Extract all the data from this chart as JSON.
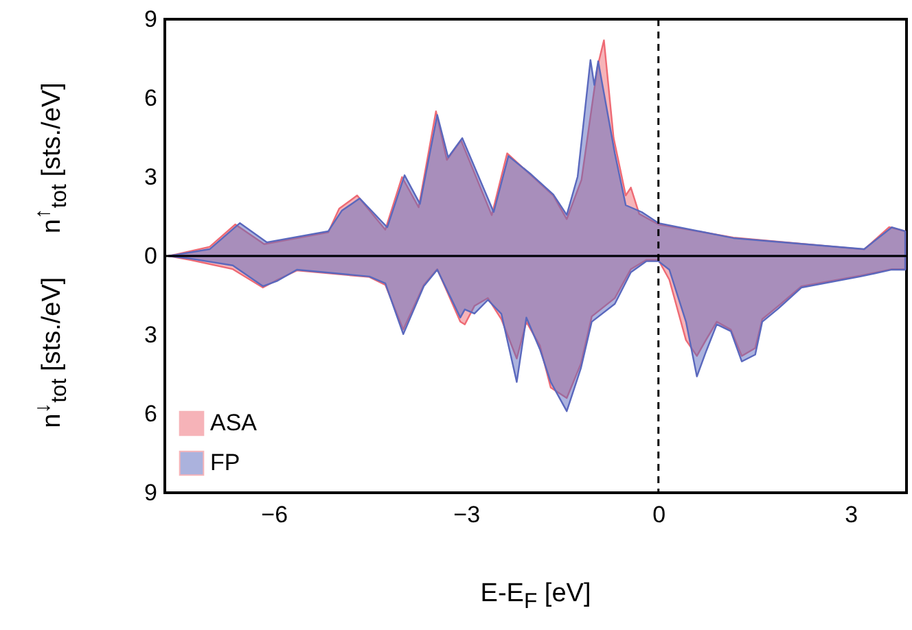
{
  "chart_data": {
    "type": "area",
    "xlabel": "E-E$_{F}$ [eV]",
    "ylabel": "n$^{↓}$$_{tot}$ [sts./eV]      n$^{↑}$$_{tot}$ [sts./eV]",
    "xlim": [
      -7.7,
      3.87
    ],
    "xticks": [
      -6,
      -3,
      0,
      3
    ],
    "ylim": [
      -9,
      9
    ],
    "yticks": [
      {
        "value": -9,
        "label": "9"
      },
      {
        "value": -6,
        "label": "6"
      },
      {
        "value": -3,
        "label": "3"
      },
      0,
      3,
      6,
      9
    ],
    "legend": "bottom left",
    "grid": false,
    "ref_lines": [
      {
        "axis": "y",
        "value": 0,
        "color": "#000000",
        "line_style": "solid"
      },
      {
        "axis": "x",
        "value": 0,
        "color": "#000000",
        "line_style": "dashed"
      }
    ],
    "series": [
      {
        "name": "ASA",
        "color": "#ee6a74",
        "x": [
          -7.64,
          -7.0,
          -6.6,
          -6.15,
          -5.15,
          -4.98,
          -4.7,
          -4.26,
          -4.0,
          -3.74,
          -3.47,
          -3.3,
          -3.08,
          -2.6,
          -2.36,
          -2.0,
          -1.64,
          -1.43,
          -1.2,
          -0.95,
          -0.85,
          -0.7,
          -0.51,
          -0.43,
          -0.3,
          0,
          1.17,
          3.21,
          3.6,
          3.85
        ],
        "values": [
          0,
          0.35,
          1.2,
          0.45,
          0.9,
          1.8,
          2.3,
          1.0,
          3.0,
          1.85,
          5.5,
          3.65,
          4.4,
          1.55,
          3.9,
          3.1,
          2.3,
          1.4,
          2.9,
          7.2,
          8.2,
          4.5,
          2.3,
          2.6,
          1.6,
          1.2,
          0.7,
          0.25,
          1.1,
          0.94
        ]
      },
      {
        "color": "#ee6a74",
        "x": [
          -7.64,
          -7.3,
          -6.64,
          -6.17,
          -5.94,
          -5.64,
          -4.51,
          -4.26,
          -3.98,
          -3.66,
          -3.45,
          -3.09,
          -3.02,
          -2.87,
          -2.66,
          -2.45,
          -2.21,
          -2.06,
          -1.85,
          -1.68,
          -1.43,
          -1.21,
          -1.04,
          -0.68,
          -0.43,
          -0.19,
          0,
          0.17,
          0.43,
          0.6,
          0.74,
          0.91,
          1.13,
          1.3,
          1.51,
          1.62,
          1.87,
          2.23,
          3.15,
          3.64,
          3.85
        ],
        "values": [
          0,
          -0.15,
          -0.5,
          -1.2,
          -0.9,
          -0.55,
          -0.8,
          -1.1,
          -2.8,
          -1.1,
          -0.5,
          -2.5,
          -2.6,
          -1.9,
          -1.6,
          -2.4,
          -3.9,
          -2.5,
          -3.4,
          -5.0,
          -5.4,
          -4.1,
          -2.3,
          -1.6,
          -0.5,
          -0.15,
          -0.15,
          -0.9,
          -3.2,
          -3.8,
          -3.2,
          -2.5,
          -2.8,
          -3.8,
          -3.5,
          -2.4,
          -1.9,
          -1.15,
          -0.75,
          -0.5,
          -0.5
        ]
      },
      {
        "name": "FP",
        "color": "#5a68bd",
        "x": [
          -7.64,
          -7.0,
          -6.53,
          -6.11,
          -5.15,
          -4.94,
          -4.66,
          -4.23,
          -3.96,
          -3.72,
          -3.45,
          -3.28,
          -3.06,
          -2.57,
          -2.34,
          -2.0,
          -1.64,
          -1.43,
          -1.26,
          -1.06,
          -1.0,
          -0.94,
          -0.68,
          -0.51,
          -0.26,
          0,
          1.17,
          3.21,
          3.64,
          3.85
        ],
        "values": [
          0,
          0.26,
          1.25,
          0.52,
          0.94,
          1.72,
          2.19,
          1.09,
          3.07,
          1.98,
          5.36,
          3.75,
          4.48,
          1.67,
          3.8,
          3.13,
          2.34,
          1.56,
          3.02,
          7.45,
          6.5,
          7.4,
          3.9,
          1.93,
          1.67,
          1.25,
          0.68,
          0.26,
          1.09,
          0.94
        ]
      },
      {
        "color": "#5a68bd",
        "x": [
          -7.64,
          -7.3,
          -6.64,
          -6.17,
          -5.94,
          -5.64,
          -4.51,
          -4.26,
          -3.98,
          -3.66,
          -3.45,
          -3.09,
          -3.02,
          -2.87,
          -2.66,
          -2.45,
          -2.21,
          -2.06,
          -1.85,
          -1.68,
          -1.43,
          -1.21,
          -1.04,
          -0.68,
          -0.43,
          -0.19,
          0,
          0.17,
          0.43,
          0.6,
          0.74,
          0.91,
          1.13,
          1.3,
          1.51,
          1.62,
          1.87,
          2.23,
          3.15,
          3.64,
          3.85
        ],
        "values": [
          0,
          -0.1,
          -0.36,
          -1.15,
          -0.94,
          -0.52,
          -0.78,
          -1.04,
          -2.97,
          -1.15,
          -0.52,
          -2.34,
          -2.03,
          -2.19,
          -1.67,
          -2.2,
          -4.79,
          -2.34,
          -3.54,
          -4.79,
          -5.9,
          -4.27,
          -2.5,
          -1.82,
          -0.62,
          -0.2,
          -0.2,
          -0.52,
          -2.5,
          -4.58,
          -3.65,
          -2.6,
          -2.86,
          -4.01,
          -3.75,
          -2.5,
          -2.0,
          -1.2,
          -0.78,
          -0.52,
          -0.52
        ]
      }
    ]
  }
}
